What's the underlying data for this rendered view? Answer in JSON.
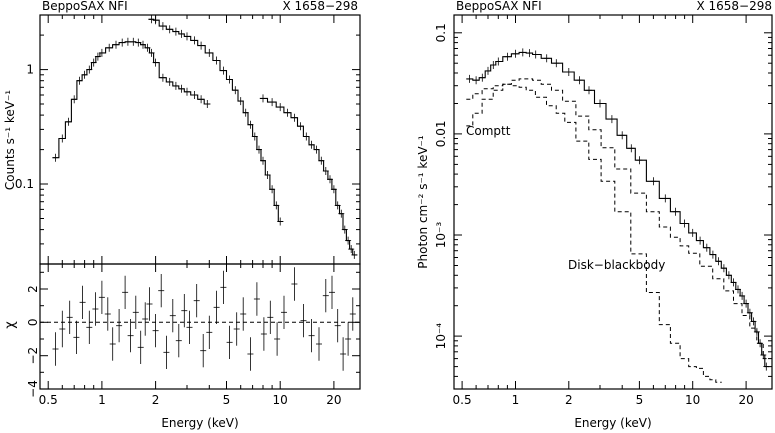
{
  "chart_data": [
    {
      "type": "line",
      "panel": "left-top",
      "header_left": "BeppoSAX NFI",
      "header_right": "X 1658−298",
      "ylabel": "Counts s⁻¹ keV⁻¹",
      "xlabel": "",
      "xscale": "log",
      "yscale": "log",
      "xlim": [
        0.45,
        28
      ],
      "ylim": [
        0.02,
        3
      ],
      "x_tick_labels": [],
      "y_tick_labels": [
        "0.1",
        "1"
      ],
      "series": [
        {
          "instrument_segment": "low-energy",
          "x": [
            0.55,
            0.6,
            0.65,
            0.7,
            0.75,
            0.8,
            0.85,
            0.9,
            0.95,
            1.0,
            1.1,
            1.2,
            1.3,
            1.4,
            1.5,
            1.6,
            1.7,
            1.8,
            1.9,
            2.0,
            2.2,
            2.4,
            2.6,
            2.8,
            3.0,
            3.3,
            3.6,
            3.9
          ],
          "y": [
            0.17,
            0.25,
            0.35,
            0.55,
            0.8,
            0.9,
            1.0,
            1.15,
            1.3,
            1.4,
            1.55,
            1.65,
            1.72,
            1.75,
            1.75,
            1.72,
            1.65,
            1.55,
            1.4,
            1.15,
            0.85,
            0.78,
            0.72,
            0.68,
            0.64,
            0.6,
            0.55,
            0.5
          ]
        },
        {
          "instrument_segment": "medium-energy",
          "x": [
            1.9,
            2.0,
            2.2,
            2.4,
            2.6,
            2.8,
            3.0,
            3.3,
            3.6,
            4.0,
            4.4,
            4.8,
            5.2,
            5.6,
            6.0,
            6.4,
            6.8,
            7.2,
            7.6,
            8.0,
            8.5,
            9.0,
            9.5,
            10.0
          ],
          "y": [
            2.75,
            2.7,
            2.4,
            2.25,
            2.15,
            2.05,
            1.95,
            1.8,
            1.62,
            1.4,
            1.2,
            0.98,
            0.82,
            0.66,
            0.53,
            0.42,
            0.33,
            0.26,
            0.2,
            0.16,
            0.12,
            0.09,
            0.065,
            0.047
          ]
        },
        {
          "instrument_segment": "high-energy",
          "x": [
            8.0,
            9.0,
            10.0,
            11.0,
            12.0,
            13.0,
            14.0,
            15.0,
            16.0,
            17.0,
            18.0,
            19.0,
            20.0,
            21.0,
            22.0,
            23.0,
            24.0,
            25.0,
            26.0
          ],
          "y": [
            0.56,
            0.52,
            0.47,
            0.42,
            0.38,
            0.32,
            0.26,
            0.22,
            0.2,
            0.16,
            0.13,
            0.11,
            0.09,
            0.065,
            0.055,
            0.04,
            0.032,
            0.027,
            0.024
          ]
        }
      ]
    },
    {
      "type": "scatter",
      "panel": "left-bottom",
      "ylabel": "χ",
      "xlabel": "Energy (keV)",
      "xscale": "log",
      "xlim": [
        0.45,
        28
      ],
      "ylim": [
        -4,
        3.5
      ],
      "x_tick_labels": [
        "0.5",
        "1",
        "2",
        "5",
        "10",
        "20"
      ],
      "y_tick_labels": [
        "−4",
        "−2",
        "0",
        "2"
      ],
      "reference_line": 0,
      "series": [
        {
          "x": [
            0.55,
            0.6,
            0.66,
            0.72,
            0.78,
            0.85,
            0.92,
            1.0,
            1.08,
            1.15,
            1.25,
            1.35,
            1.45,
            1.55,
            1.65,
            1.75,
            1.85,
            2.0,
            2.15,
            2.3,
            2.5,
            2.7,
            2.9,
            3.1,
            3.4,
            3.7,
            4.0,
            4.4,
            4.8,
            5.2,
            5.7,
            6.2,
            6.8,
            7.4,
            8.1,
            8.8,
            9.6,
            10.5,
            12,
            13.5,
            15,
            16.5,
            18,
            19.5,
            21,
            22.5,
            24,
            25.5
          ],
          "y": [
            -1.6,
            -0.4,
            0.3,
            -0.9,
            1.2,
            -0.3,
            0.8,
            1.5,
            0.5,
            -1.3,
            -0.2,
            1.8,
            -0.8,
            0.6,
            -1.5,
            0.2,
            1.1,
            -0.5,
            1.9,
            -1.8,
            0.4,
            -1.1,
            0.7,
            -0.3,
            1.3,
            -1.7,
            -0.6,
            0.9,
            2.1,
            -1.2,
            -0.4,
            0.5,
            -1.9,
            1.4,
            -0.7,
            0.3,
            -1.0,
            0.6,
            2.3,
            0.1,
            -0.8,
            -1.3,
            1.6,
            1.8,
            -0.2,
            -1.9,
            -1.0,
            0.5
          ],
          "error": [
            1.0,
            1.1,
            1.0,
            1.0,
            1.0,
            1.0,
            1.0,
            1.0,
            1.0,
            1.0,
            1.0,
            1.0,
            1.0,
            1.0,
            1.0,
            1.0,
            1.0,
            1.0,
            1.0,
            1.0,
            1.0,
            1.0,
            1.0,
            1.0,
            1.0,
            1.0,
            1.0,
            1.0,
            1.0,
            1.0,
            1.0,
            1.0,
            1.0,
            1.0,
            1.0,
            1.0,
            1.0,
            1.0,
            1.0,
            1.0,
            1.0,
            1.0,
            1.0,
            1.0,
            1.0,
            1.0,
            1.0,
            1.0
          ]
        }
      ]
    },
    {
      "type": "line",
      "panel": "right",
      "header_left": "BeppoSAX NFI",
      "header_right": "X 1658−298",
      "ylabel": "Photon cm⁻² s⁻¹ keV⁻¹",
      "xlabel": "Energy (keV)",
      "xscale": "log",
      "yscale": "log",
      "xlim": [
        0.45,
        28
      ],
      "ylim": [
        3e-05,
        0.15
      ],
      "x_tick_labels": [
        "0.5",
        "1",
        "2",
        "5",
        "10",
        "20"
      ],
      "y_tick_labels": [
        "0.1",
        "0.01",
        "10⁻³",
        "10⁻⁴"
      ],
      "annotations": [
        "Comptt",
        "Disk−blackbody"
      ],
      "series": [
        {
          "component": "total",
          "x": [
            0.55,
            0.6,
            0.65,
            0.7,
            0.75,
            0.8,
            0.9,
            1.0,
            1.1,
            1.2,
            1.3,
            1.5,
            1.7,
            2.0,
            2.3,
            2.6,
            3.0,
            3.5,
            4.0,
            4.5,
            5.0,
            6.0,
            7.0,
            8.0,
            9.0,
            10.0,
            11.0,
            12.0,
            13.0,
            14.0,
            15.0,
            16.0,
            17.0,
            18.0,
            19.0,
            20.0,
            21.0,
            22.0,
            23.0,
            24.0,
            25.0,
            26.0
          ],
          "y": [
            0.035,
            0.034,
            0.036,
            0.042,
            0.048,
            0.052,
            0.058,
            0.062,
            0.064,
            0.063,
            0.061,
            0.056,
            0.05,
            0.041,
            0.034,
            0.027,
            0.02,
            0.014,
            0.0097,
            0.0072,
            0.0055,
            0.0034,
            0.0023,
            0.0017,
            0.0013,
            0.00105,
            0.00088,
            0.00075,
            0.00064,
            0.00055,
            0.00047,
            0.0004,
            0.00034,
            0.00029,
            0.00025,
            0.00021,
            0.00017,
            0.00014,
            0.00011,
            8.5e-05,
            6.5e-05,
            5e-05
          ]
        },
        {
          "component": "Comptt",
          "x": [
            0.55,
            0.6,
            0.7,
            0.8,
            0.9,
            1.0,
            1.1,
            1.2,
            1.3,
            1.5,
            1.7,
            2.0,
            2.4,
            2.8,
            3.3,
            4.0,
            5.0,
            6.0,
            7.0,
            8.0,
            9.0,
            10.0,
            12.0,
            14.0,
            16.0,
            18.0,
            20.0,
            22.0,
            24.0,
            26.0
          ],
          "y": [
            0.012,
            0.016,
            0.022,
            0.027,
            0.031,
            0.034,
            0.035,
            0.035,
            0.034,
            0.031,
            0.027,
            0.021,
            0.015,
            0.011,
            0.0073,
            0.0045,
            0.0026,
            0.0017,
            0.0012,
            0.00095,
            0.00078,
            0.00066,
            0.00049,
            0.00037,
            0.00028,
            0.00021,
            0.00016,
            0.00012,
            8.5e-05,
            6e-05
          ]
        },
        {
          "component": "Disk−blackbody",
          "x": [
            0.55,
            0.6,
            0.7,
            0.8,
            0.9,
            1.0,
            1.1,
            1.2,
            1.4,
            1.6,
            1.8,
            2.0,
            2.4,
            2.8,
            3.3,
            4.0,
            5.0,
            6.0,
            7.0,
            8.0,
            9.0,
            10.0,
            11.0,
            12.0,
            13.0,
            14.0
          ],
          "y": [
            0.022,
            0.025,
            0.028,
            0.03,
            0.031,
            0.03,
            0.029,
            0.027,
            0.023,
            0.019,
            0.016,
            0.013,
            0.0085,
            0.0056,
            0.0034,
            0.0017,
            0.00065,
            0.00027,
            0.00013,
            8.5e-05,
            6e-05,
            5e-05,
            4.8e-05,
            4e-05,
            3.7e-05,
            3.5e-05
          ]
        }
      ]
    }
  ]
}
